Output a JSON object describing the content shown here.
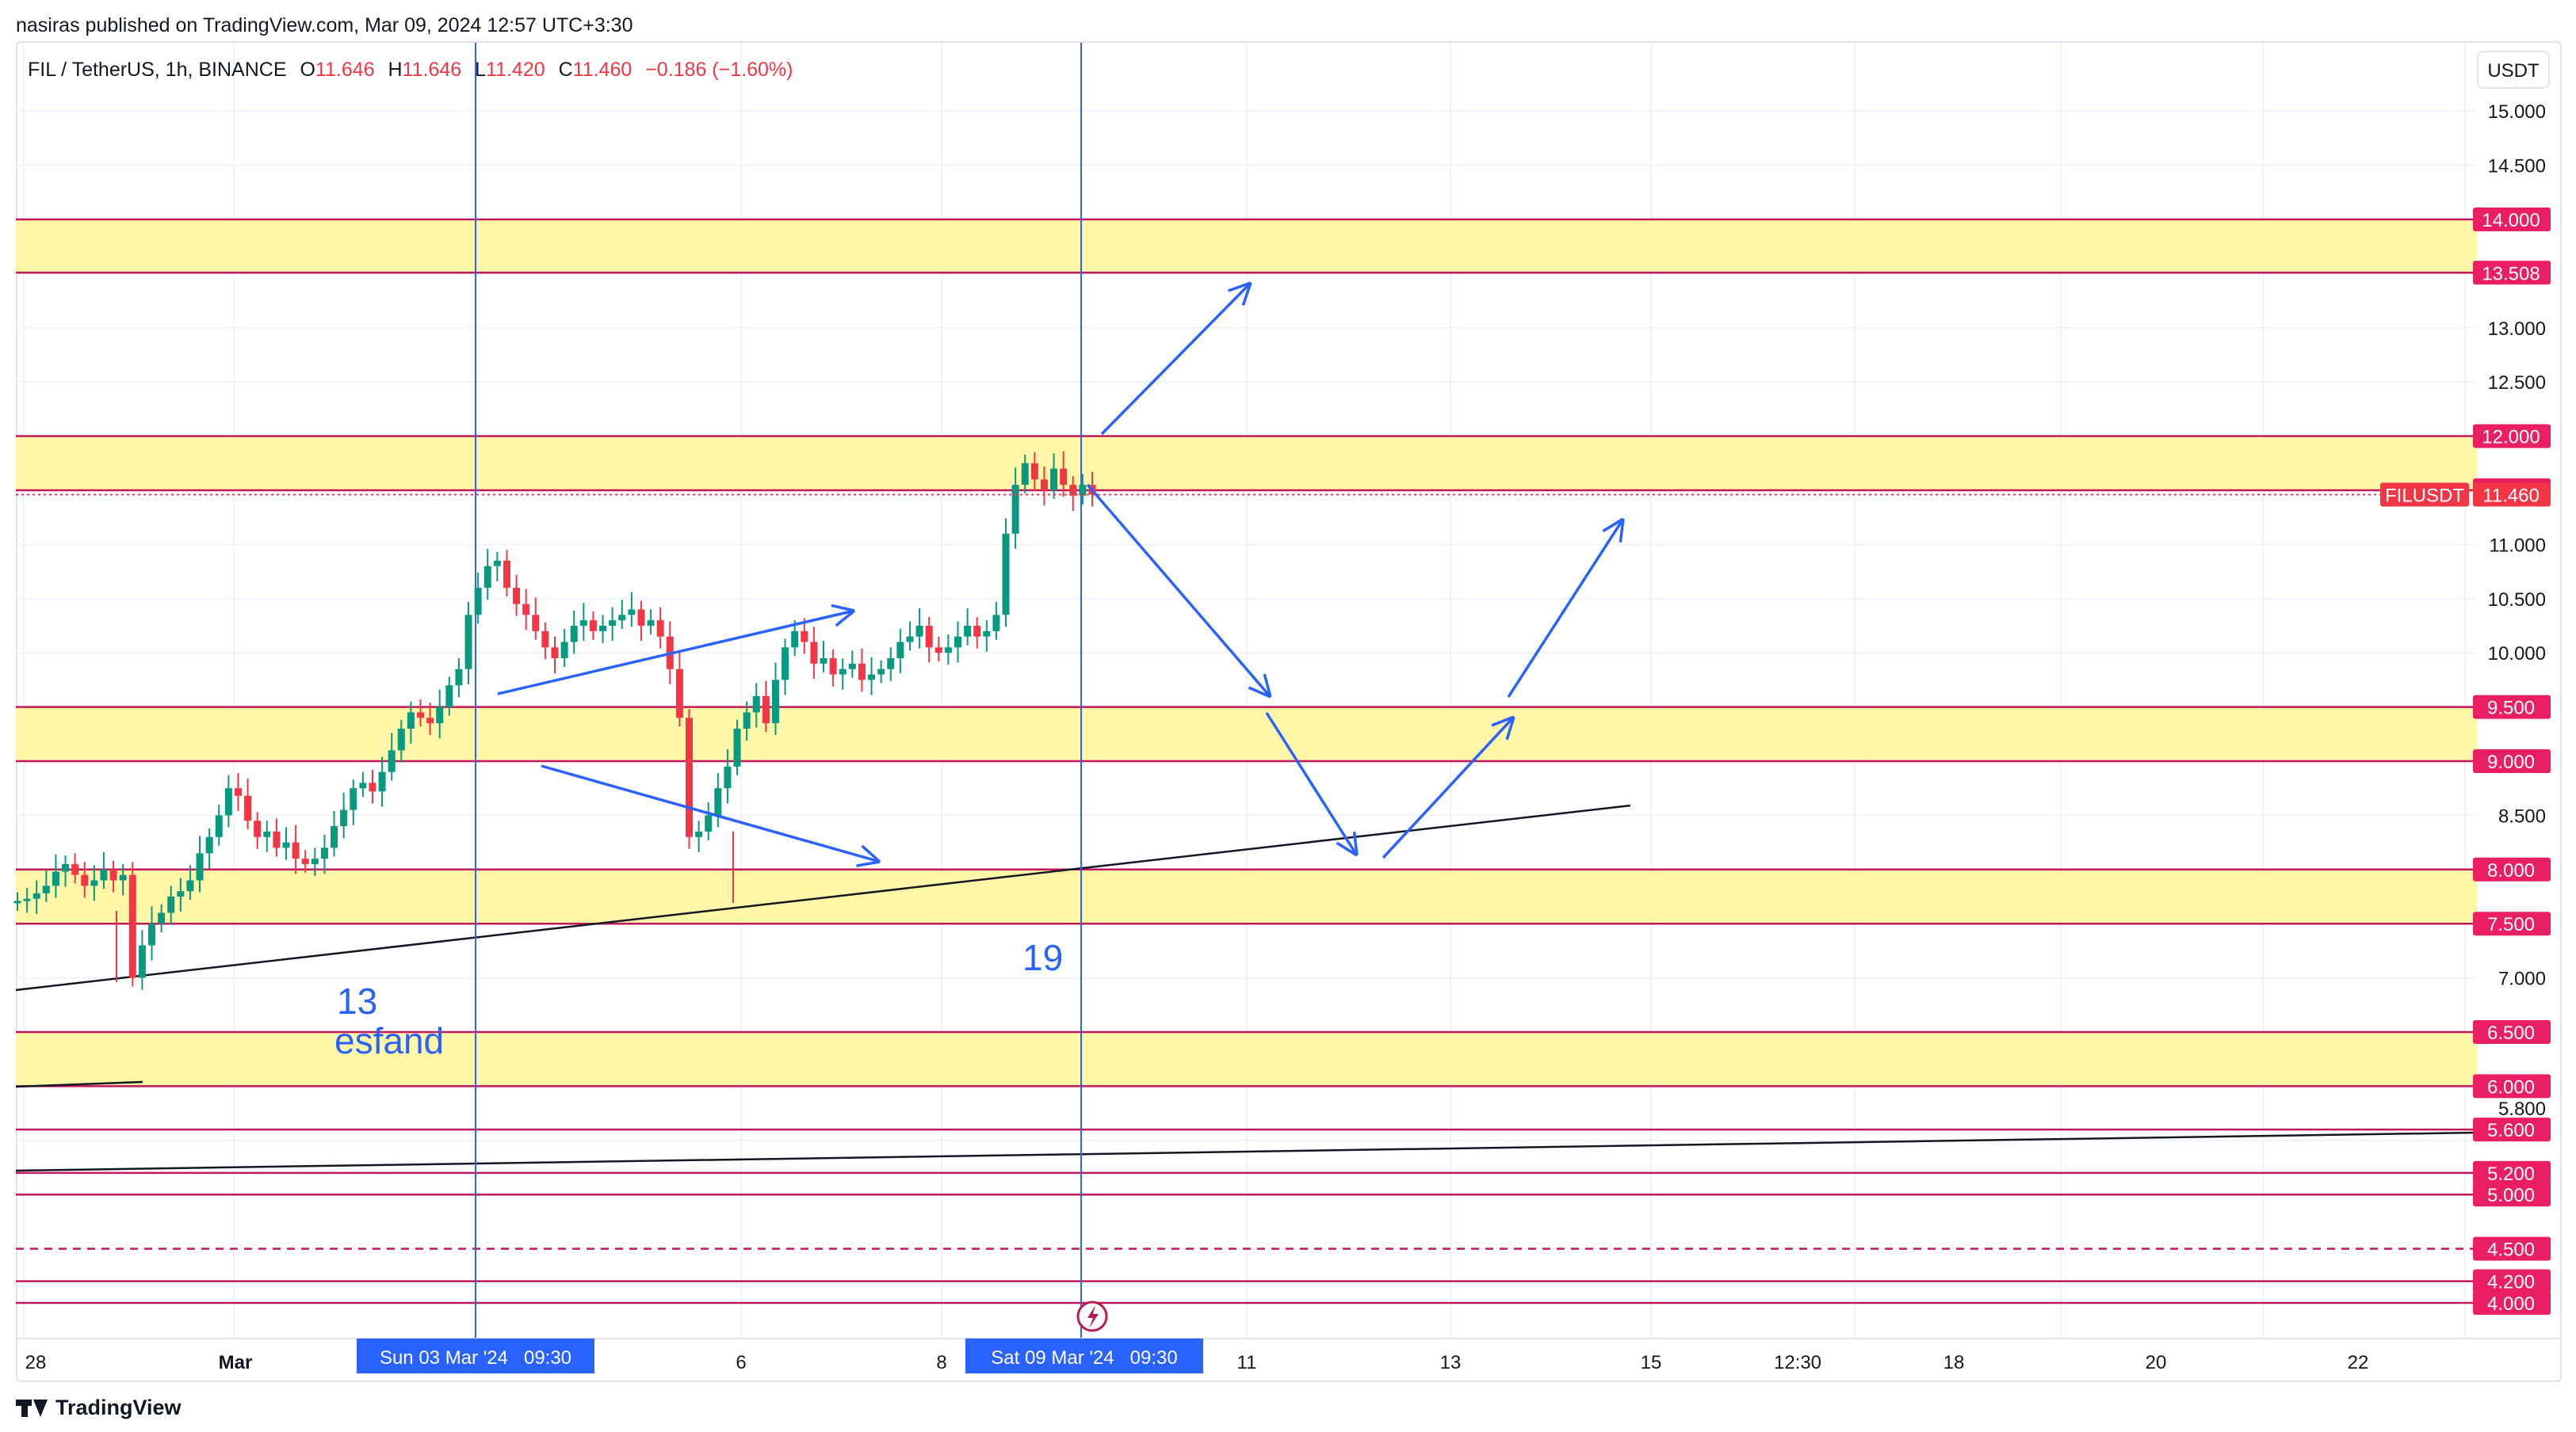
{
  "header": {
    "published_by": "nasiras published on TradingView.com, Mar 09, 2024 12:57 UTC+3:30"
  },
  "legend": {
    "symbol": "FIL / TetherUS, 1h, BINANCE",
    "open_label": "O",
    "open": "11.646",
    "high_label": "H",
    "high": "11.646",
    "low_label": "L",
    "low": "11.420",
    "close_label": "C",
    "close": "11.460",
    "change": "−0.186 (−1.60%)"
  },
  "toolbar": {
    "unit_label": "USDT"
  },
  "footer": {
    "brand": "TradingView"
  },
  "colors": {
    "zone_fill": "#fff59d",
    "zone_line": "#c2185b",
    "price_tag": "#f23645",
    "axis_tag": "#e91e63",
    "drawing_blue": "#2962ff",
    "up": "#089981",
    "down": "#f23645",
    "marker": "#2962ff",
    "crosshair_tag": "#2962ff"
  },
  "chart_data": {
    "type": "candlestick",
    "symbol": "FIL / TetherUS",
    "interval": "1h",
    "exchange": "BINANCE",
    "ylim": [
      3.9,
      15.3
    ],
    "y_ticks": [
      "15.000",
      "14.500",
      "13.500",
      "13.000",
      "12.500",
      "11.000",
      "10.500",
      "10.000",
      "8.500",
      "7.000",
      "5.800"
    ],
    "x_tick_labels": [
      "28",
      "Mar",
      "6",
      "8",
      "11",
      "13",
      "15",
      "12:30",
      "18",
      "20",
      "22"
    ],
    "current_price": {
      "label": "FILUSDT",
      "value": "11.460"
    },
    "horizontal_levels": [
      "14.000",
      "13.508",
      "12.000",
      "11.500",
      "9.500",
      "9.000",
      "8.000",
      "7.500",
      "6.500",
      "6.000",
      "5.600",
      "5.200",
      "5.000",
      "4.500",
      "4.200",
      "4.000"
    ],
    "zones": [
      [
        13.508,
        14.0
      ],
      [
        11.5,
        12.0
      ],
      [
        9.0,
        9.5
      ],
      [
        7.5,
        8.0
      ],
      [
        6.0,
        6.5
      ]
    ],
    "dashed_levels": [
      4.5
    ],
    "vertical_markers": [
      {
        "date_label": "Sun 03 Mar '24   09:30",
        "annotation_number": "13",
        "annotation_text": "esfand"
      },
      {
        "date_label": "Sat 09 Mar '24   09:30",
        "annotation_number": "19",
        "annotation_text": ""
      }
    ],
    "candles_close": [
      7.71,
      7.73,
      7.78,
      7.85,
      7.98,
      8.05,
      7.95,
      7.85,
      7.9,
      8.0,
      7.9,
      7.95,
      7.0,
      7.3,
      7.5,
      7.6,
      7.75,
      7.8,
      7.9,
      8.15,
      8.3,
      8.5,
      8.75,
      8.68,
      8.45,
      8.3,
      8.35,
      8.2,
      8.25,
      8.1,
      8.05,
      8.1,
      8.2,
      8.4,
      8.55,
      8.75,
      8.8,
      8.72,
      8.9,
      9.1,
      9.3,
      9.45,
      9.4,
      9.35,
      9.5,
      9.7,
      9.85,
      10.35,
      10.6,
      10.8,
      10.85,
      10.6,
      10.45,
      10.35,
      10.2,
      10.05,
      9.95,
      10.1,
      10.25,
      10.3,
      10.2,
      10.25,
      10.3,
      10.35,
      10.4,
      10.25,
      10.3,
      10.15,
      9.85,
      9.4,
      8.3,
      8.35,
      8.5,
      8.75,
      8.95,
      9.3,
      9.45,
      9.6,
      9.35,
      9.75,
      10.05,
      10.2,
      10.1,
      9.9,
      9.95,
      9.8,
      9.85,
      9.9,
      9.75,
      9.8,
      9.85,
      9.95,
      10.1,
      10.15,
      10.25,
      10.05,
      10.0,
      10.05,
      10.15,
      10.25,
      10.15,
      10.2,
      10.35,
      11.1,
      11.55,
      11.75,
      11.6,
      11.5,
      11.7,
      11.55,
      11.45,
      11.55,
      11.46
    ]
  }
}
